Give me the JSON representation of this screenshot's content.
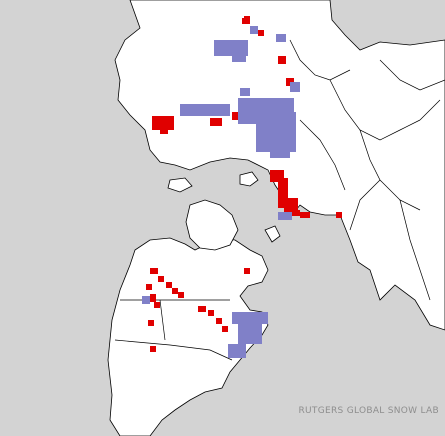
{
  "map": {
    "credit": "RUTGERS GLOBAL SNOW LAB",
    "colors": {
      "ocean": "#d3d3d3",
      "snow": "#ffffff",
      "land_border": "#000000",
      "snow_gain": "#e00000",
      "snow_loss": "#8080c8"
    }
  }
}
